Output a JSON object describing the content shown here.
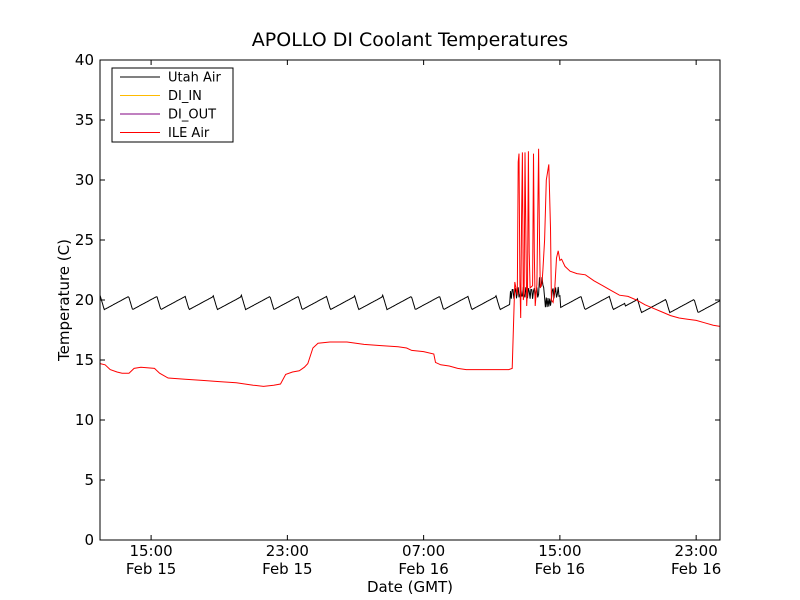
{
  "chart_data": {
    "type": "line",
    "title": "APOLLO DI Coolant Temperatures",
    "xlabel": "Date (GMT)",
    "ylabel": "Temperature (C)",
    "ylim": [
      0,
      40
    ],
    "xlim": [
      11.0,
      47.4
    ],
    "grid": false,
    "legend_position": "top-left",
    "yticks": [
      0,
      5,
      10,
      15,
      20,
      25,
      30,
      35,
      40
    ],
    "xticks": [
      {
        "x": 14,
        "time": "15:00",
        "date": "Feb 15"
      },
      {
        "x": 22,
        "time": "23:00",
        "date": "Feb 15"
      },
      {
        "x": 30,
        "time": "07:00",
        "date": "Feb 16"
      },
      {
        "x": 38,
        "time": "15:00",
        "date": "Feb 16"
      },
      {
        "x": 46,
        "time": "23:00",
        "date": "Feb 16"
      }
    ],
    "series": [
      {
        "name": "Utah Air",
        "color": "#000000",
        "style": "sawtooth",
        "base": 19.2,
        "peak": 20.4,
        "period": 1.66
      },
      {
        "name": "DI_IN",
        "color": "#ffbb00",
        "style": "none"
      },
      {
        "name": "DI_OUT",
        "color": "#800080",
        "style": "none"
      },
      {
        "name": "ILE Air",
        "color": "#ff0000",
        "style": "line",
        "points": [
          [
            11.0,
            14.7
          ],
          [
            11.3,
            14.6
          ],
          [
            11.6,
            14.2
          ],
          [
            12.0,
            14.0
          ],
          [
            12.3,
            13.9
          ],
          [
            12.7,
            13.9
          ],
          [
            13.0,
            14.3
          ],
          [
            13.4,
            14.4
          ],
          [
            14.2,
            14.3
          ],
          [
            14.5,
            13.9
          ],
          [
            15.0,
            13.5
          ],
          [
            16.0,
            13.4
          ],
          [
            17.0,
            13.3
          ],
          [
            18.0,
            13.2
          ],
          [
            19.0,
            13.1
          ],
          [
            20.0,
            12.9
          ],
          [
            20.6,
            12.8
          ],
          [
            21.2,
            12.9
          ],
          [
            21.6,
            13.0
          ],
          [
            21.9,
            13.8
          ],
          [
            22.3,
            14.0
          ],
          [
            22.7,
            14.1
          ],
          [
            23.0,
            14.4
          ],
          [
            23.2,
            14.7
          ],
          [
            23.5,
            16.0
          ],
          [
            23.8,
            16.4
          ],
          [
            24.5,
            16.5
          ],
          [
            25.5,
            16.5
          ],
          [
            26.5,
            16.3
          ],
          [
            27.5,
            16.2
          ],
          [
            28.5,
            16.1
          ],
          [
            29.0,
            16.0
          ],
          [
            29.3,
            15.8
          ],
          [
            30.0,
            15.7
          ],
          [
            30.6,
            15.5
          ],
          [
            30.7,
            14.8
          ],
          [
            31.0,
            14.6
          ],
          [
            31.5,
            14.5
          ],
          [
            32.0,
            14.3
          ],
          [
            32.5,
            14.2
          ],
          [
            33.0,
            14.2
          ],
          [
            34.0,
            14.2
          ],
          [
            35.0,
            14.2
          ],
          [
            35.2,
            14.3
          ],
          [
            35.35,
            21.5
          ],
          [
            35.5,
            20.4
          ],
          [
            35.55,
            31.5
          ],
          [
            35.6,
            32.2
          ],
          [
            35.65,
            21.5
          ],
          [
            35.7,
            18.5
          ],
          [
            35.75,
            27.0
          ],
          [
            35.8,
            32.3
          ],
          [
            35.85,
            20.0
          ],
          [
            35.9,
            20.5
          ],
          [
            35.95,
            32.3
          ],
          [
            36.0,
            26.0
          ],
          [
            36.05,
            19.5
          ],
          [
            36.1,
            21.0
          ],
          [
            36.15,
            32.4
          ],
          [
            36.2,
            24.0
          ],
          [
            36.25,
            21.0
          ],
          [
            36.4,
            21.2
          ],
          [
            36.45,
            32.2
          ],
          [
            36.5,
            24.0
          ],
          [
            36.55,
            19.5
          ],
          [
            36.65,
            21.3
          ],
          [
            36.75,
            32.6
          ],
          [
            36.8,
            25.0
          ],
          [
            36.85,
            21.0
          ],
          [
            36.95,
            21.4
          ],
          [
            37.0,
            22.5
          ],
          [
            37.1,
            25.0
          ],
          [
            37.2,
            30.0
          ],
          [
            37.35,
            31.3
          ],
          [
            37.45,
            26.0
          ],
          [
            37.5,
            20.0
          ],
          [
            37.6,
            19.8
          ],
          [
            37.7,
            21.0
          ],
          [
            37.8,
            23.5
          ],
          [
            37.9,
            24.1
          ],
          [
            38.0,
            23.3
          ],
          [
            38.1,
            23.4
          ],
          [
            38.3,
            22.8
          ],
          [
            38.6,
            22.4
          ],
          [
            39.0,
            22.2
          ],
          [
            39.5,
            22.1
          ],
          [
            40.0,
            21.6
          ],
          [
            40.5,
            21.2
          ],
          [
            41.0,
            20.8
          ],
          [
            41.5,
            20.4
          ],
          [
            42.0,
            20.3
          ],
          [
            42.5,
            20.0
          ],
          [
            43.0,
            19.6
          ],
          [
            43.5,
            19.3
          ],
          [
            44.0,
            19.0
          ],
          [
            44.5,
            18.7
          ],
          [
            45.0,
            18.5
          ],
          [
            45.5,
            18.4
          ],
          [
            46.0,
            18.3
          ],
          [
            46.5,
            18.1
          ],
          [
            47.0,
            17.9
          ],
          [
            47.4,
            17.8
          ]
        ]
      }
    ]
  }
}
